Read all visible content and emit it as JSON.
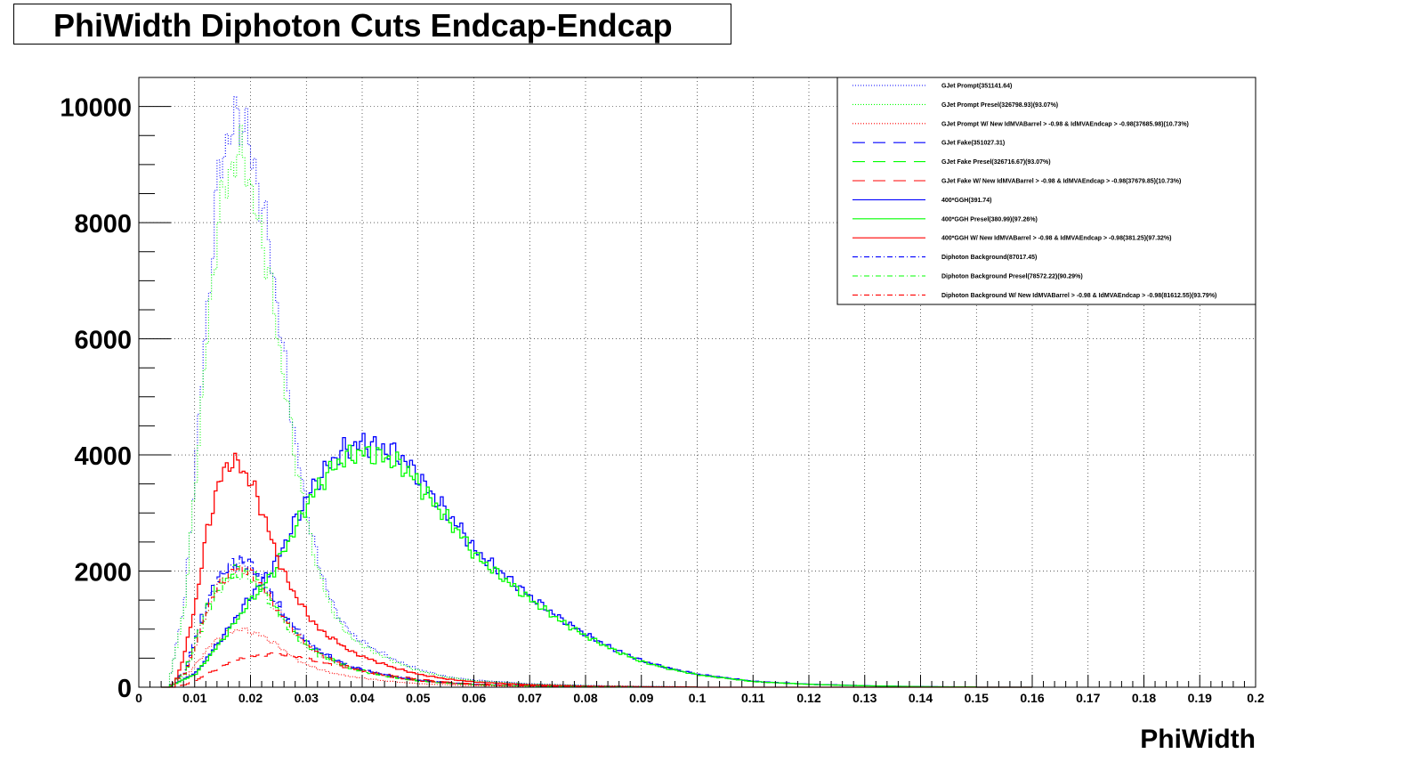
{
  "chart_data": {
    "type": "line",
    "title": "PhiWidth Diphoton Cuts Endcap-Endcap",
    "xlabel": "PhiWidth",
    "ylabel": "",
    "xlim": [
      0,
      0.2
    ],
    "ylim": [
      0,
      10500
    ],
    "grid": true,
    "legend_position": "top-right",
    "x_ticks": [
      "0",
      "0.01",
      "0.02",
      "0.03",
      "0.04",
      "0.05",
      "0.06",
      "0.07",
      "0.08",
      "0.09",
      "0.1",
      "0.11",
      "0.12",
      "0.13",
      "0.14",
      "0.15",
      "0.16",
      "0.17",
      "0.18",
      "0.19",
      "0.2"
    ],
    "y_ticks": [
      "0",
      "2000",
      "4000",
      "6000",
      "8000",
      "10000"
    ],
    "series": [
      {
        "name": "GJet Prompt(351141.64)",
        "color": "#0000ff",
        "dash": "dotted",
        "x": [
          0.005,
          0.008,
          0.01,
          0.012,
          0.014,
          0.016,
          0.018,
          0.019,
          0.02,
          0.022,
          0.024,
          0.026,
          0.028,
          0.03,
          0.032,
          0.035,
          0.038,
          0.042,
          0.046,
          0.05,
          0.055,
          0.06,
          0.07,
          0.08,
          0.09,
          0.1
        ],
        "y": [
          0,
          1500,
          4000,
          6500,
          8800,
          9600,
          9800,
          9700,
          9000,
          8300,
          7000,
          5500,
          4100,
          3000,
          2100,
          1300,
          900,
          650,
          450,
          300,
          180,
          120,
          60,
          30,
          15,
          5
        ]
      },
      {
        "name": "GJet Prompt Presel(326798.93)(93.07%)",
        "color": "#00ff00",
        "dash": "dotted",
        "x": [
          0.005,
          0.008,
          0.01,
          0.012,
          0.014,
          0.016,
          0.018,
          0.019,
          0.02,
          0.022,
          0.024,
          0.026,
          0.028,
          0.03,
          0.032,
          0.035,
          0.038,
          0.042,
          0.046,
          0.05,
          0.055,
          0.06,
          0.07,
          0.08,
          0.09,
          0.1
        ],
        "y": [
          0,
          1400,
          3700,
          6000,
          8100,
          8900,
          9200,
          9100,
          8400,
          7700,
          6500,
          5100,
          3800,
          2800,
          1950,
          1200,
          830,
          600,
          420,
          280,
          170,
          110,
          55,
          28,
          14,
          5
        ]
      },
      {
        "name": "GJet Prompt W/ New IdMVABarrel > -0.98 & IdMVAEndcap > -0.98(37685.98)(10.73%)",
        "color": "#ff0000",
        "dash": "dotted",
        "x": [
          0.005,
          0.008,
          0.01,
          0.012,
          0.014,
          0.016,
          0.018,
          0.02,
          0.022,
          0.024,
          0.026,
          0.028,
          0.03,
          0.034,
          0.038,
          0.042,
          0.046,
          0.05,
          0.055,
          0.06,
          0.07,
          0.08,
          0.09
        ],
        "y": [
          0,
          150,
          400,
          650,
          850,
          950,
          1000,
          950,
          880,
          760,
          620,
          480,
          380,
          250,
          180,
          130,
          90,
          60,
          40,
          25,
          12,
          6,
          2
        ]
      },
      {
        "name": "GJet Fake(351027.31)",
        "color": "#0000ff",
        "dash": "dashed",
        "x": [
          0.005,
          0.008,
          0.01,
          0.012,
          0.014,
          0.016,
          0.018,
          0.02,
          0.022,
          0.024,
          0.026,
          0.028,
          0.03,
          0.032,
          0.035,
          0.038,
          0.042,
          0.046,
          0.05,
          0.055,
          0.06,
          0.07,
          0.08,
          0.09,
          0.1
        ],
        "y": [
          0,
          300,
          900,
          1500,
          1900,
          2100,
          2200,
          2100,
          1850,
          1550,
          1250,
          1000,
          800,
          640,
          480,
          360,
          260,
          180,
          120,
          80,
          50,
          25,
          12,
          5,
          2
        ]
      },
      {
        "name": "GJet Fake Presel(326716.67)(93.07%)",
        "color": "#00ff00",
        "dash": "dashed",
        "x": [
          0.005,
          0.008,
          0.01,
          0.012,
          0.014,
          0.016,
          0.018,
          0.02,
          0.022,
          0.024,
          0.026,
          0.028,
          0.03,
          0.032,
          0.035,
          0.038,
          0.042,
          0.046,
          0.05,
          0.055,
          0.06,
          0.07,
          0.08,
          0.09,
          0.1
        ],
        "y": [
          0,
          280,
          840,
          1400,
          1780,
          1960,
          2050,
          1960,
          1720,
          1450,
          1160,
          930,
          740,
          600,
          450,
          340,
          240,
          170,
          115,
          75,
          46,
          23,
          11,
          5,
          2
        ]
      },
      {
        "name": "GJet Fake W/ New IdMVABarrel > -0.98 & IdMVAEndcap > -0.98(37679.85)(10.73%)",
        "color": "#ff0000",
        "dash": "dashed",
        "x": [
          0.005,
          0.008,
          0.01,
          0.012,
          0.014,
          0.016,
          0.018,
          0.02,
          0.022,
          0.024,
          0.026,
          0.028,
          0.03,
          0.034,
          0.038,
          0.042,
          0.046,
          0.05,
          0.055,
          0.06,
          0.07,
          0.08
        ],
        "y": [
          0,
          40,
          120,
          220,
          330,
          420,
          480,
          530,
          560,
          570,
          560,
          530,
          490,
          400,
          320,
          250,
          190,
          140,
          90,
          55,
          25,
          10
        ]
      },
      {
        "name": "400*GGH(391.74)",
        "color": "#0000ff",
        "dash": "solid",
        "x": [
          0.005,
          0.01,
          0.015,
          0.02,
          0.024,
          0.026,
          0.028,
          0.03,
          0.032,
          0.034,
          0.036,
          0.038,
          0.04,
          0.042,
          0.044,
          0.046,
          0.048,
          0.05,
          0.052,
          0.055,
          0.058,
          0.06,
          0.065,
          0.07,
          0.075,
          0.08,
          0.085,
          0.09,
          0.095,
          0.1,
          0.11,
          0.12,
          0.13,
          0.14,
          0.15
        ],
        "y": [
          0,
          250,
          900,
          1600,
          2100,
          2500,
          2900,
          3300,
          3600,
          3850,
          4050,
          4150,
          4200,
          4150,
          4100,
          4000,
          3850,
          3600,
          3350,
          3000,
          2650,
          2350,
          1950,
          1550,
          1200,
          900,
          650,
          450,
          320,
          220,
          100,
          50,
          25,
          10,
          4
        ]
      },
      {
        "name": "400*GGH Presel(380.99)(97.26%)",
        "color": "#00ff00",
        "dash": "solid",
        "x": [
          0.005,
          0.01,
          0.015,
          0.02,
          0.024,
          0.026,
          0.028,
          0.03,
          0.032,
          0.034,
          0.036,
          0.038,
          0.04,
          0.042,
          0.044,
          0.046,
          0.048,
          0.05,
          0.052,
          0.055,
          0.058,
          0.06,
          0.065,
          0.07,
          0.075,
          0.08,
          0.085,
          0.09,
          0.095,
          0.1,
          0.11,
          0.12,
          0.13,
          0.14,
          0.15
        ],
        "y": [
          0,
          230,
          850,
          1520,
          2000,
          2400,
          2780,
          3170,
          3470,
          3720,
          3910,
          4000,
          4050,
          4000,
          3950,
          3860,
          3720,
          3480,
          3240,
          2900,
          2560,
          2270,
          1880,
          1500,
          1160,
          870,
          630,
          435,
          310,
          210,
          95,
          48,
          24,
          9,
          4
        ]
      },
      {
        "name": "400*GGH W/ New IdMVABarrel > -0.98 & IdMVAEndcap > -0.98(381.25)(97.32%)",
        "color": "#ff0000",
        "dash": "solid",
        "x": [
          0.006,
          0.008,
          0.01,
          0.012,
          0.014,
          0.016,
          0.018,
          0.02,
          0.022,
          0.024,
          0.026,
          0.028,
          0.03,
          0.032,
          0.035,
          0.038,
          0.042,
          0.046,
          0.05,
          0.055,
          0.06,
          0.07,
          0.08,
          0.09,
          0.1
        ],
        "y": [
          0,
          600,
          1500,
          2700,
          3500,
          3900,
          3800,
          3500,
          3000,
          2400,
          1900,
          1550,
          1250,
          1000,
          800,
          600,
          450,
          320,
          220,
          140,
          90,
          40,
          18,
          8,
          3
        ]
      },
      {
        "name": "Diphoton Background(87017.45)",
        "color": "#0000ff",
        "dash": "dashdot",
        "x": [
          0.005,
          0.008,
          0.01,
          0.012,
          0.014,
          0.016,
          0.018,
          0.02,
          0.022,
          0.024,
          0.026,
          0.028,
          0.03,
          0.032,
          0.035,
          0.038,
          0.042,
          0.046,
          0.05,
          0.055,
          0.06,
          0.07,
          0.08,
          0.09
        ],
        "y": [
          0,
          250,
          800,
          1400,
          1850,
          2050,
          2150,
          2050,
          1800,
          1500,
          1200,
          950,
          760,
          610,
          460,
          340,
          250,
          170,
          115,
          75,
          45,
          22,
          10,
          4
        ]
      },
      {
        "name": "Diphoton Background Presel(78572.22)(90.29%)",
        "color": "#00ff00",
        "dash": "dashdot",
        "x": [
          0.005,
          0.008,
          0.01,
          0.012,
          0.014,
          0.016,
          0.018,
          0.02,
          0.022,
          0.024,
          0.026,
          0.028,
          0.03,
          0.032,
          0.035,
          0.038,
          0.042,
          0.046,
          0.05,
          0.055,
          0.06,
          0.07,
          0.08,
          0.09
        ],
        "y": [
          0,
          220,
          720,
          1270,
          1680,
          1860,
          1950,
          1860,
          1630,
          1360,
          1090,
          860,
          690,
          550,
          420,
          310,
          225,
          155,
          105,
          68,
          41,
          20,
          9,
          4
        ]
      },
      {
        "name": "Diphoton Background W/ New IdMVABarrel > -0.98 & IdMVAEndcap > -0.98(81612.55)(93.79%)",
        "color": "#ff0000",
        "dash": "dashdot",
        "x": [
          0.005,
          0.008,
          0.01,
          0.012,
          0.014,
          0.016,
          0.018,
          0.02,
          0.022,
          0.024,
          0.026,
          0.028,
          0.03,
          0.032,
          0.035,
          0.038,
          0.042,
          0.046,
          0.05,
          0.055,
          0.06,
          0.07,
          0.08,
          0.09
        ],
        "y": [
          0,
          235,
          760,
          1330,
          1760,
          1950,
          2050,
          1950,
          1710,
          1420,
          1140,
          900,
          720,
          580,
          440,
          325,
          235,
          160,
          110,
          71,
          43,
          21,
          9,
          4
        ]
      }
    ]
  }
}
